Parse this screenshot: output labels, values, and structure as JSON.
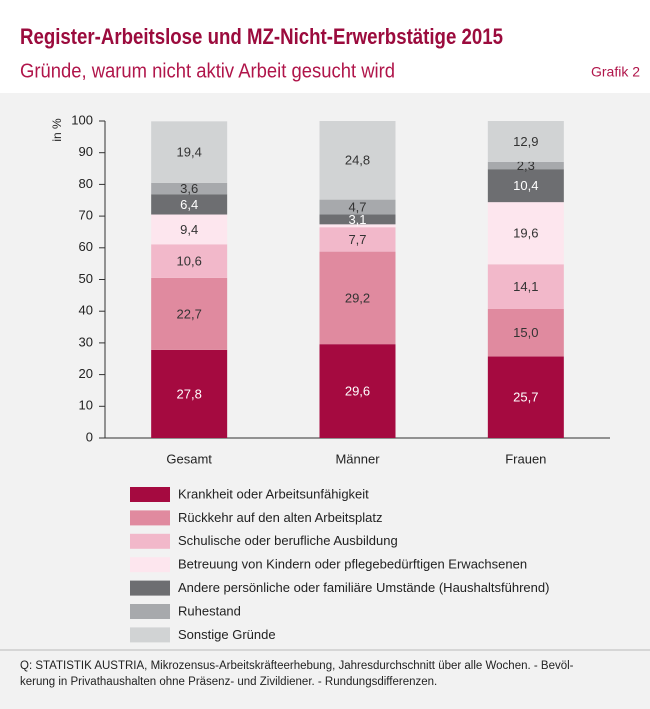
{
  "chart_data": {
    "type": "stacked_bar",
    "title": "Register-Arbeitslose und MZ-Nicht-Erwerbstätige 2015",
    "subtitle": "Gründe, warum nicht aktiv Arbeit gesucht wird",
    "figure_label": "Grafik 2",
    "y_label": "in %",
    "categories": [
      "Gesamt",
      "Männer",
      "Frauen"
    ],
    "ylim": [
      0,
      100
    ],
    "yticks": [
      0,
      10,
      20,
      30,
      40,
      50,
      60,
      70,
      80,
      90,
      100
    ],
    "series": [
      {
        "name": "Krankheit oder Arbeitsunfähigkeit",
        "color": "#a50a40",
        "label_color": "#ffffff",
        "values": [
          27.8,
          29.6,
          25.7
        ],
        "value_labels": [
          "27,8",
          "29,6",
          "25,7"
        ]
      },
      {
        "name": "Rückkehr auf den alten Arbeitsplatz",
        "color": "#e08a9f",
        "label_color": "#333333",
        "values": [
          22.7,
          29.2,
          15.0
        ],
        "value_labels": [
          "22,7",
          "29,2",
          "15,0"
        ]
      },
      {
        "name": "Schulische oder berufliche Ausbildung",
        "color": "#f2b8ca",
        "label_color": "#333333",
        "values": [
          10.6,
          7.7,
          14.1
        ],
        "value_labels": [
          "10,6",
          "7,7",
          "14,1"
        ]
      },
      {
        "name": "Betreuung von Kindern oder pflegebedürftigen Erwachsenen",
        "color": "#fde6ee",
        "label_color": "#333333",
        "values": [
          9.4,
          0.9,
          19.6
        ],
        "value_labels": [
          "9,4",
          null,
          "19,6"
        ]
      },
      {
        "name": "Andere persönliche oder familiäre Umstände (Haushaltsführend)",
        "color": "#6d6e71",
        "label_color": "#ffffff",
        "values": [
          6.4,
          3.1,
          10.4
        ],
        "value_labels": [
          "6,4",
          "3,1",
          "10,4"
        ]
      },
      {
        "name": "Ruhestand",
        "color": "#a7a9ac",
        "label_color": "#333333",
        "values": [
          3.6,
          4.7,
          2.3
        ],
        "value_labels": [
          "3,6",
          "4,7",
          "2,3"
        ]
      },
      {
        "name": "Sonstige Gründe",
        "color": "#d1d3d4",
        "label_color": "#333333",
        "values": [
          19.4,
          24.8,
          12.9
        ],
        "value_labels": [
          "19,4",
          "24,8",
          "12,9"
        ]
      }
    ],
    "notes": [
      "Q: STATISTIK AUSTRIA, Mikrozensus-Arbeitskräfteerhebung, Jahresdurchschnitt über alle Wochen. - Bevöl-",
      "kerung in Privathaushalten ohne Präsenz- und Zivildiener. - Rundungsdifferenzen."
    ]
  }
}
